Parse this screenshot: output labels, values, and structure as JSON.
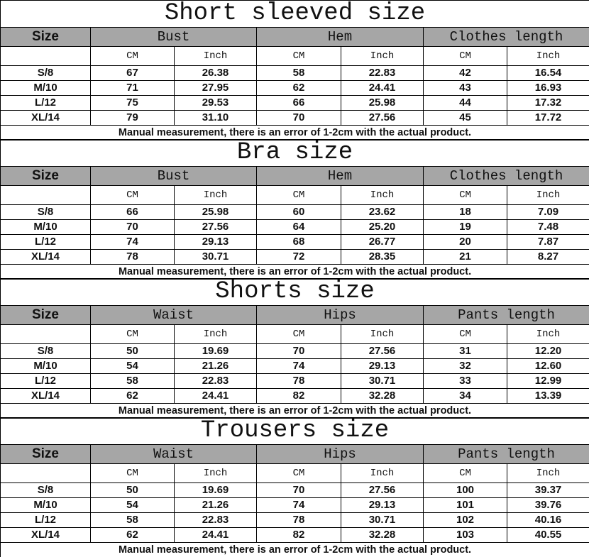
{
  "unit_labels": {
    "cm": "CM",
    "inch": "Inch"
  },
  "size_header": "Size",
  "note": "Manual measurement, there is an error of 1-2cm with the actual product.",
  "sections": [
    {
      "title": "Short sleeved size",
      "groups": [
        "Bust",
        "Hem",
        "Clothes length"
      ],
      "rows": [
        [
          "S/8",
          "67",
          "26.38",
          "58",
          "22.83",
          "42",
          "16.54"
        ],
        [
          "M/10",
          "71",
          "27.95",
          "62",
          "24.41",
          "43",
          "16.93"
        ],
        [
          "L/12",
          "75",
          "29.53",
          "66",
          "25.98",
          "44",
          "17.32"
        ],
        [
          "XL/14",
          "79",
          "31.10",
          "70",
          "27.56",
          "45",
          "17.72"
        ]
      ]
    },
    {
      "title": "Bra size",
      "groups": [
        "Bust",
        "Hem",
        "Clothes length"
      ],
      "rows": [
        [
          "S/8",
          "66",
          "25.98",
          "60",
          "23.62",
          "18",
          "7.09"
        ],
        [
          "M/10",
          "70",
          "27.56",
          "64",
          "25.20",
          "19",
          "7.48"
        ],
        [
          "L/12",
          "74",
          "29.13",
          "68",
          "26.77",
          "20",
          "7.87"
        ],
        [
          "XL/14",
          "78",
          "30.71",
          "72",
          "28.35",
          "21",
          "8.27"
        ]
      ]
    },
    {
      "title": "Shorts size",
      "groups": [
        "Waist",
        "Hips",
        "Pants length"
      ],
      "rows": [
        [
          "S/8",
          "50",
          "19.69",
          "70",
          "27.56",
          "31",
          "12.20"
        ],
        [
          "M/10",
          "54",
          "21.26",
          "74",
          "29.13",
          "32",
          "12.60"
        ],
        [
          "L/12",
          "58",
          "22.83",
          "78",
          "30.71",
          "33",
          "12.99"
        ],
        [
          "XL/14",
          "62",
          "24.41",
          "82",
          "32.28",
          "34",
          "13.39"
        ]
      ]
    },
    {
      "title": "Trousers size",
      "groups": [
        "Waist",
        "Hips",
        "Pants length"
      ],
      "rows": [
        [
          "S/8",
          "50",
          "19.69",
          "70",
          "27.56",
          "100",
          "39.37"
        ],
        [
          "M/10",
          "54",
          "21.26",
          "74",
          "29.13",
          "101",
          "39.76"
        ],
        [
          "L/12",
          "58",
          "22.83",
          "78",
          "30.71",
          "102",
          "40.16"
        ],
        [
          "XL/14",
          "62",
          "24.41",
          "82",
          "32.28",
          "103",
          "40.55"
        ]
      ]
    }
  ],
  "colors": {
    "header_bg": "#a6a6a6",
    "border": "#000000"
  }
}
